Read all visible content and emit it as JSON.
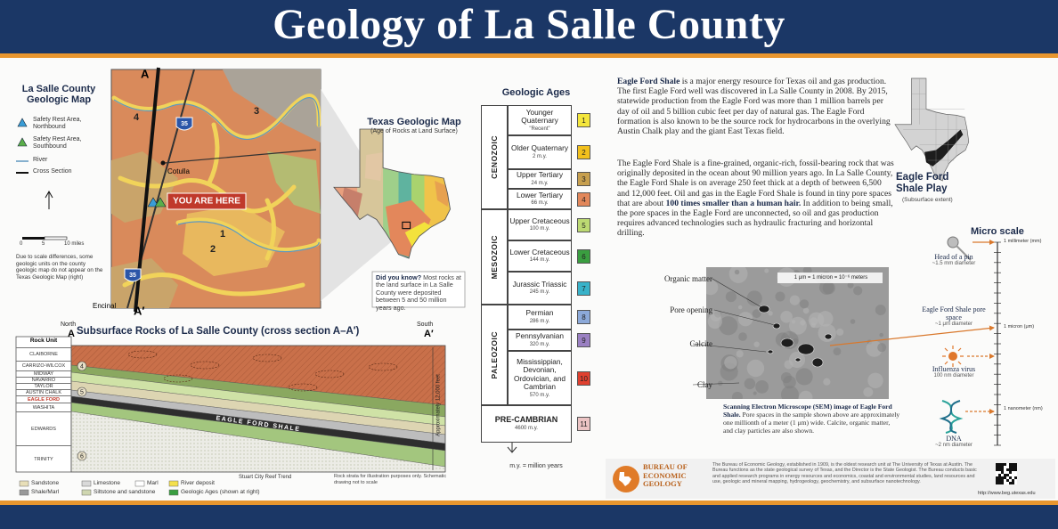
{
  "header": {
    "title": "Geology of La Salle County"
  },
  "county_map": {
    "title": "La Salle County Geologic Map",
    "legend": [
      "Safety Rest Area, Northbound",
      "Safety Rest Area, Southbound",
      "River",
      "Cross Section"
    ],
    "scale": [
      "0",
      "5",
      "10 miles"
    ],
    "note": "Due to scale differences, some geologic units on the county geologic map do not appear on the Texas Geologic Map (right)",
    "you_are_here": "YOU ARE HERE",
    "cotulla": "Cotulla",
    "encinal": "Encinal",
    "a": "A",
    "a_prime": "A′",
    "highway": "35",
    "unit_numbers": [
      "4",
      "3",
      "2",
      "1"
    ]
  },
  "texas_map": {
    "title": "Texas Geologic Map",
    "subtitle": "(Age of Rocks at Land Surface)",
    "did_you_know": [
      {
        "text": "Did you know?",
        "bold": true
      },
      {
        "text": " Most rocks at the land surface in La Salle County were deposited between 5 and 50 million years ago.",
        "bold": false
      }
    ]
  },
  "geologic_ages": {
    "title": "Geologic Ages",
    "eras": [
      "CENOZOIC",
      "MESOZOIC",
      "PALEOZOIC"
    ],
    "periods": [
      {
        "name": "Younger Quaternary",
        "end": "\"Recent\"",
        "number": "1",
        "color": "#f4e63c"
      },
      {
        "name": "Older Quaternary",
        "end": "2 m.y.",
        "number": "2",
        "color": "#f2c01c"
      },
      {
        "name": "Upper Tertiary",
        "end": "24 m.y.",
        "number": "3",
        "color": "#c79f4e"
      },
      {
        "name": "Lower Tertiary",
        "end": "66 m.y.",
        "number": "4",
        "color": "#e2875a"
      },
      {
        "name": "Upper Cretaceous",
        "end": "100 m.y.",
        "number": "5",
        "color": "#bcd972"
      },
      {
        "name": "Lower Cretaceous",
        "end": "144 m.y.",
        "number": "6",
        "color": "#3a9e40"
      },
      {
        "name": "Jurassic Triassic",
        "end": "245 m.y.",
        "number": "7",
        "color": "#38b2c9"
      },
      {
        "name": "Permian",
        "end": "286 m.y.",
        "number": "8",
        "color": "#8ca9d9"
      },
      {
        "name": "Pennsylvanian",
        "end": "320 m.y.",
        "number": "9",
        "color": "#9a80c2"
      },
      {
        "name": "Mississippian, Devonian, Ordovician, and Cambrian",
        "end": "570 m.y.",
        "number": "10",
        "color": "#e0402f"
      },
      {
        "name": "PRE-CAMBRIAN",
        "end": "4600 m.y.",
        "number": "11",
        "color": "#ecc4c4"
      }
    ],
    "footnote": "m.y. = million years"
  },
  "description": {
    "paragraphs": [
      [
        {
          "text": "Eagle Ford Shale",
          "bold": true
        },
        {
          "text": " is a major energy resource for Texas oil and gas production. The first Eagle Ford well was discovered in La Salle County in 2008. By 2015, statewide production from the Eagle Ford was more than 1 million barrels per day of oil and 5 billion cubic feet per day of natural gas. The Eagle Ford formation is also known to be the source rock for hydrocarbons in the overlying Austin Chalk play and the giant East Texas field.",
          "bold": false
        }
      ],
      [
        {
          "text": "The Eagle Ford Shale is a fine-grained, organic-rich, fossil-bearing rock that was originally deposited in the ocean about 90 million years ago. In La Salle County, the Eagle Ford Shale is on average 250 feet thick at a depth of between 6,500 and 12,000 feet. Oil and gas in the Eagle Ford Shale is found in tiny pore spaces that are about ",
          "bold": false
        },
        {
          "text": "100 times smaller than a human hair.",
          "bold": true
        },
        {
          "text": " In addition to being small, the pore spaces in the Eagle Ford are unconnected, so oil and gas production requires advanced technologies such as hydraulic fracturing and horizontal drilling.",
          "bold": false
        }
      ]
    ]
  },
  "play_map": {
    "title": "Eagle Ford Shale Play",
    "subtitle": "(Subsurface extent)"
  },
  "sem": {
    "labels": [
      "Organic matter",
      "Pore opening",
      "Calcite",
      "Clay"
    ],
    "scale_label": "1 μm = 1 micron = 10⁻⁶ meters",
    "caption": [
      {
        "text": "Scanning Electron Microscope (SEM) image of Eagle Ford Shale.",
        "bold": true
      },
      {
        "text": " Pore spaces in the sample shown above are approximately one millionth of a meter (1 μm) wide. Calcite, organic matter, and clay particles are also shown.",
        "bold": false
      }
    ]
  },
  "micro_scale": {
    "title": "Micro scale",
    "items": [
      {
        "name": "Head of a pin",
        "size": "~1.5 mm diameter"
      },
      {
        "name": "Eagle Ford Shale pore space",
        "size": "~1 μm diameter"
      },
      {
        "name": "Influenza virus",
        "size": "100 nm diameter"
      },
      {
        "name": "DNA",
        "size": "~2 nm diameter"
      }
    ],
    "ticks": [
      "1 millimeter (mm)",
      "1 micron (μm)",
      "1 nanometer (nm)"
    ]
  },
  "cross_section": {
    "title": "Subsurface Rocks of La Salle County (cross section A–A′)",
    "north": "North",
    "south": "South",
    "a": "A",
    "a_prime": "A′",
    "rock_unit_header": "Rock Unit",
    "rock_units": [
      "CLAIBORNE",
      "CARRIZO-WILCOX",
      "MIDWAY",
      "NAVARRO",
      "TAYLOR",
      "AUSTIN CHALK",
      "EAGLE FORD",
      "WASHITA",
      "EDWARDS",
      "TRINITY"
    ],
    "layer_numbers": [
      "4",
      "5",
      "6"
    ],
    "eagle_ford_label": "EAGLE FORD SHALE",
    "depth_label": "Approximately 12,000 feet",
    "reef_label": "Stuart City Reef Trend",
    "note": "Rock strata for illustration purposes only. Schematic drawing not to scale",
    "legend": [
      "Sandstone",
      "Limestone",
      "Marl",
      "River deposit",
      "Shale/Marl",
      "Siltstone and sandstone",
      "Geologic Ages (shown at right)"
    ]
  },
  "footer": {
    "org": [
      "BUREAU OF",
      "ECONOMIC",
      "GEOLOGY"
    ],
    "blurb": "The Bureau of Economic Geology, established in 1909, is the oldest research unit at The University of Texas at Austin. The Bureau functions as the state geological survey of Texas, and the Director is the State Geologist. The Bureau conducts basic and applied research programs in energy resources and economics, coastal and environmental studies, land resources and use, geologic and mineral mapping, hydrogeology, geochemistry, and subsurface nanotechnology.",
    "url": "http://www.beg.utexas.edu"
  }
}
